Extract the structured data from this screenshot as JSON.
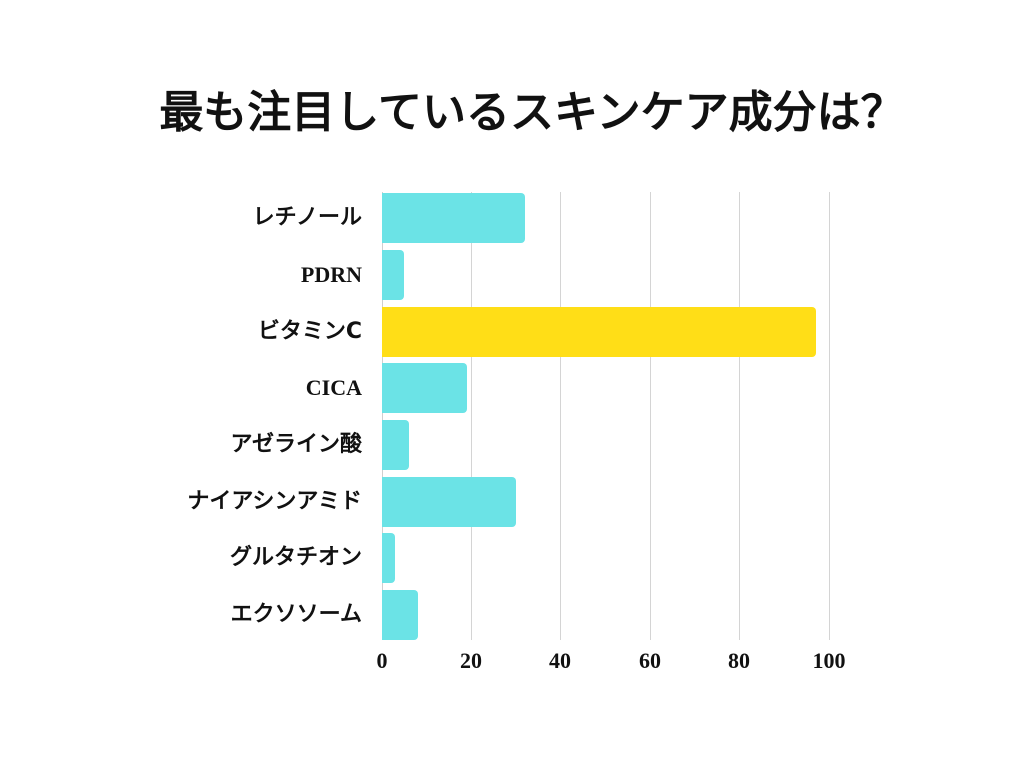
{
  "title": "最も注目しているスキンケア成分は？",
  "colors": {
    "default_bar": "#6be3e6",
    "highlight_bar": "#ffde17",
    "grid": "#d4d4d4"
  },
  "chart_data": {
    "type": "bar",
    "orientation": "horizontal",
    "title": "最も注目しているスキンケア成分は？",
    "xlabel": "",
    "ylabel": "",
    "categories": [
      "レチノール",
      "PDRN",
      "ビタミンC",
      "CICA",
      "アゼライン酸",
      "ナイアシンアミド",
      "グルタチオン",
      "エクソソーム"
    ],
    "values": [
      32,
      5,
      97,
      19,
      6,
      30,
      3,
      8
    ],
    "highlight": "ビタミンC",
    "xlim": [
      0,
      100
    ],
    "xticks": [
      "0",
      "20",
      "40",
      "60",
      "80",
      "100"
    ],
    "grid": true,
    "legend": null
  }
}
